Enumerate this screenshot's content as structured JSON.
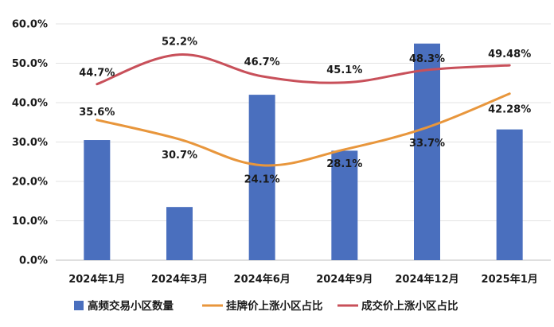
{
  "chart_data": {
    "type": "bar+line",
    "categories": [
      "2024年1月",
      "2024年3月",
      "2024年6月",
      "2024年9月",
      "2024年12月",
      "2025年1月"
    ],
    "ylim": [
      0,
      60
    ],
    "yticks": [
      "0.0%",
      "10.0%",
      "20.0%",
      "30.0%",
      "40.0%",
      "50.0%",
      "60.0%"
    ],
    "grid": true,
    "legend_position": "bottom",
    "series": [
      {
        "name": "高频交易小区数量",
        "kind": "bar",
        "color": "#4a6fbe",
        "values": [
          30.5,
          13.5,
          42,
          27.8,
          55,
          33.2
        ]
      },
      {
        "name": "挂牌价上涨小区占比",
        "kind": "line",
        "color": "#e8963c",
        "values": [
          35.6,
          30.7,
          24.1,
          28.1,
          33.7,
          42.28
        ],
        "labels": [
          "35.6%",
          "30.7%",
          "24.1%",
          "28.1%",
          "33.7%",
          "42.28%"
        ]
      },
      {
        "name": "成交价上涨小区占比",
        "kind": "line",
        "color": "#c8505a",
        "values": [
          44.7,
          52.2,
          46.7,
          45.1,
          48.3,
          49.48
        ],
        "labels": [
          "44.7%",
          "52.2%",
          "46.7%",
          "45.1%",
          "48.3%",
          "49.48%"
        ]
      }
    ]
  }
}
